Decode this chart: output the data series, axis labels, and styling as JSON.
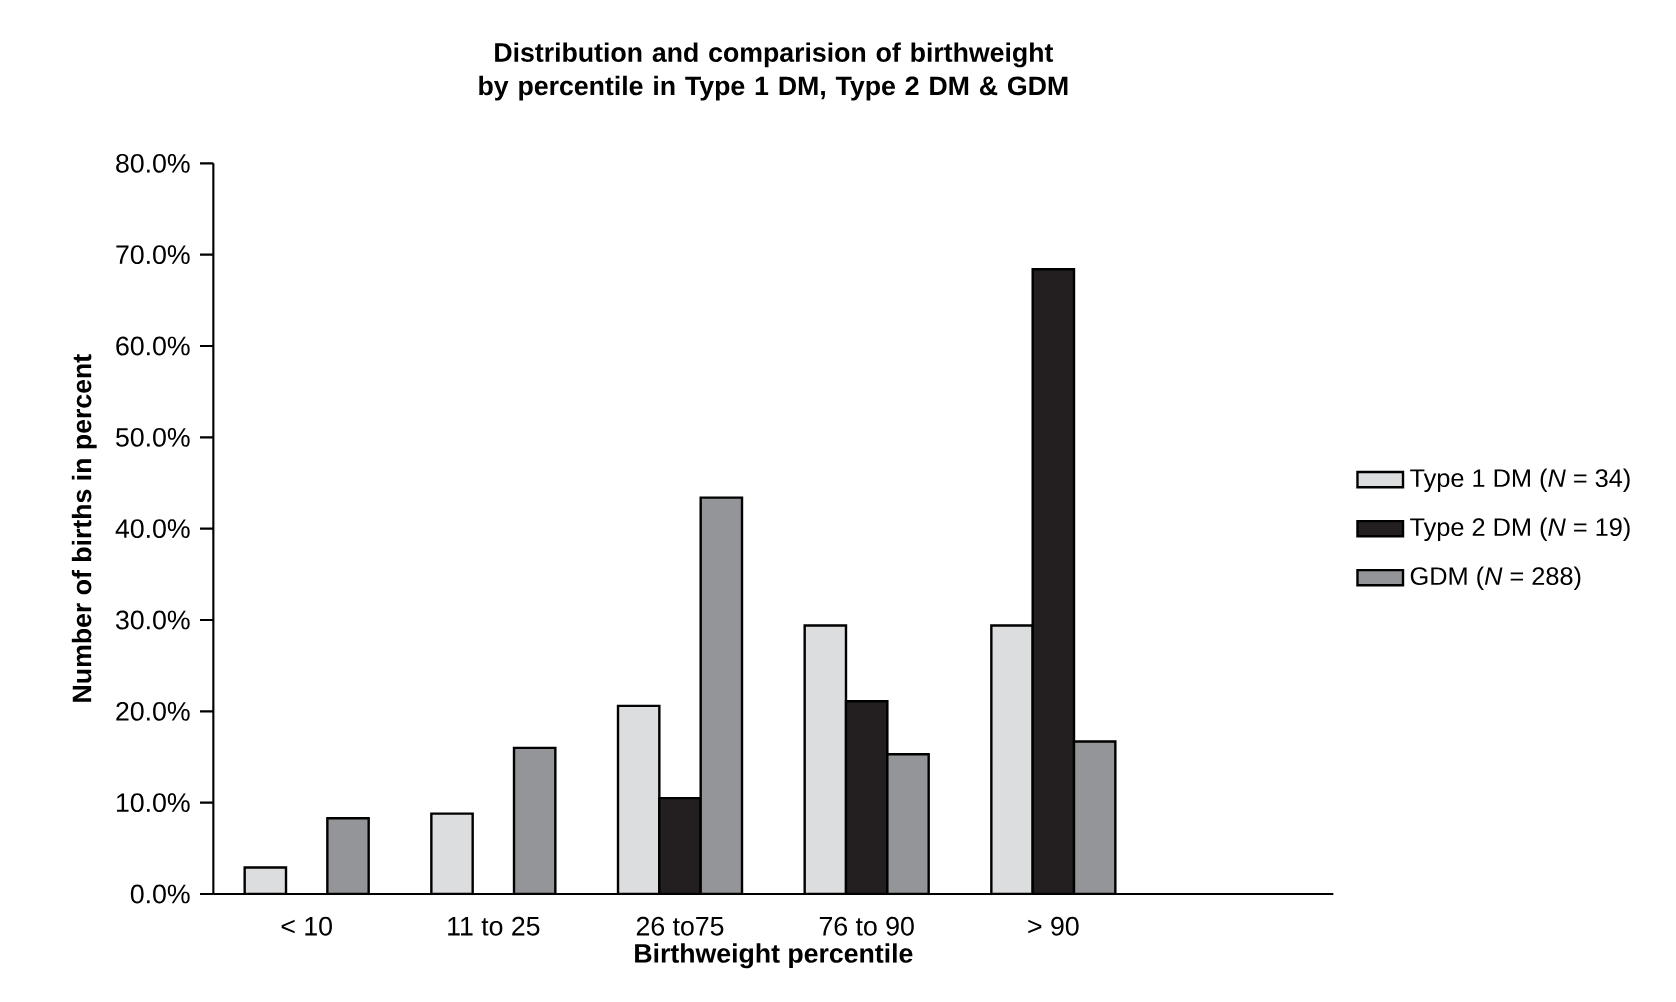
{
  "chart_data": {
    "type": "bar",
    "title": "Distribution and comparision of birthweight by percentile in Type 1 DM, Type 2 DM & GDM",
    "xlabel": "Birthweight percentile",
    "ylabel": "Number of births in percent",
    "categories": [
      "< 10",
      "11 to 25",
      "26 to75",
      "76 to 90",
      "> 90"
    ],
    "series": [
      {
        "name": "Type 1 DM (*N* = 34)",
        "color": "#dcdddf",
        "values": [
          2.9,
          8.8,
          20.6,
          29.4,
          29.4
        ]
      },
      {
        "name": "Type 2 DM (*N* = 19)",
        "color": "#231f20",
        "values": [
          null,
          null,
          10.5,
          21.1,
          68.4
        ]
      },
      {
        "name": "GDM (*N* = 288)",
        "color": "#939598",
        "values": [
          8.3,
          16.0,
          43.4,
          15.3,
          16.7
        ]
      }
    ],
    "ylim": [
      0,
      80
    ],
    "yticks": [
      {
        "value": 0,
        "label": "0.0%"
      },
      {
        "value": 10,
        "label": "10.0%"
      },
      {
        "value": 20,
        "label": "20.0%"
      },
      {
        "value": 30,
        "label": "30.0%"
      },
      {
        "value": 40,
        "label": "40.0%"
      },
      {
        "value": 50,
        "label": "50.0%"
      },
      {
        "value": 60,
        "label": "60.0%"
      },
      {
        "value": 70,
        "label": "70.0%"
      },
      {
        "value": 80,
        "label": "80.0%"
      }
    ],
    "grid": false,
    "legend": "right"
  }
}
